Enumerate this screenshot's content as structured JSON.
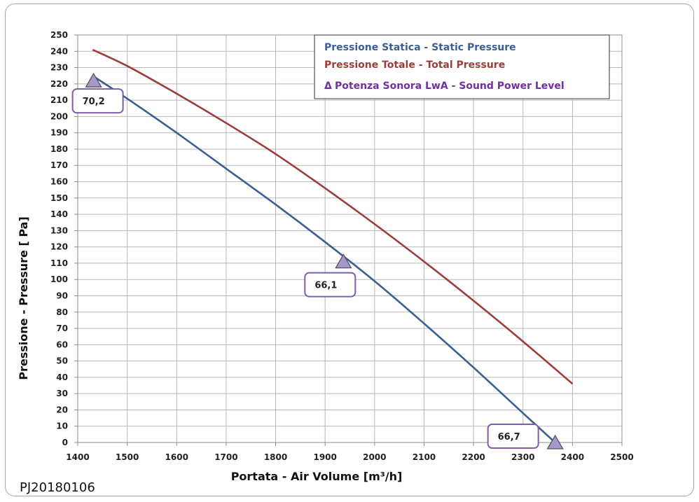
{
  "footer_code": "PJ20180106",
  "chart_data": {
    "type": "line",
    "title": "",
    "xlabel": "Portata - Air Volume [m³/h]",
    "ylabel": "Pressione - Pressure [ Pa]",
    "xlim": [
      1400,
      2500
    ],
    "ylim": [
      0,
      250
    ],
    "x_ticks": [
      "1400",
      "1500",
      "1600",
      "1700",
      "1800",
      "1900",
      "2000",
      "2100",
      "2200",
      "2300",
      "2400",
      "2500"
    ],
    "y_ticks": [
      "0",
      "10",
      "20",
      "30",
      "40",
      "50",
      "60",
      "70",
      "80",
      "90",
      "100",
      "110",
      "120",
      "130",
      "140",
      "150",
      "160",
      "170",
      "180",
      "190",
      "200",
      "210",
      "220",
      "230",
      "240",
      "250"
    ],
    "grid": true,
    "legend_position": "top-right",
    "legend": [
      {
        "label": "Pressione Statica - Static Pressure",
        "color": "#3a5f93"
      },
      {
        "label": "Pressione  Totale  - Total Pressure",
        "color": "#9c3d3a"
      },
      {
        "label": "Potenza Sonora LwA  - Sound Power Level",
        "color": "#7030a0",
        "symbol": "Δ"
      }
    ],
    "series": [
      {
        "name": "Pressione Statica - Static Pressure",
        "color": "#3a5f93",
        "x": [
          1430,
          1500,
          1600,
          1700,
          1800,
          1900,
          2000,
          2100,
          2200,
          2300,
          2365
        ],
        "y": [
          225,
          211,
          190,
          168,
          146,
          123,
          99,
          73,
          46,
          18,
          0
        ]
      },
      {
        "name": "Pressione  Totale  - Total Pressure",
        "color": "#9c3d3a",
        "x": [
          1430,
          1500,
          1600,
          1700,
          1800,
          1900,
          2000,
          2100,
          2200,
          2300,
          2400
        ],
        "y": [
          241,
          231,
          214,
          196,
          177,
          156,
          134,
          111,
          87,
          62,
          36
        ]
      },
      {
        "name": "Potenza Sonora LwA  - Sound Power Level",
        "color": "#a090c8",
        "x": [
          1432,
          1937,
          2365
        ],
        "y": [
          222,
          111,
          0
        ],
        "labels": [
          "70,2",
          "66,1",
          "66,7"
        ]
      }
    ]
  }
}
